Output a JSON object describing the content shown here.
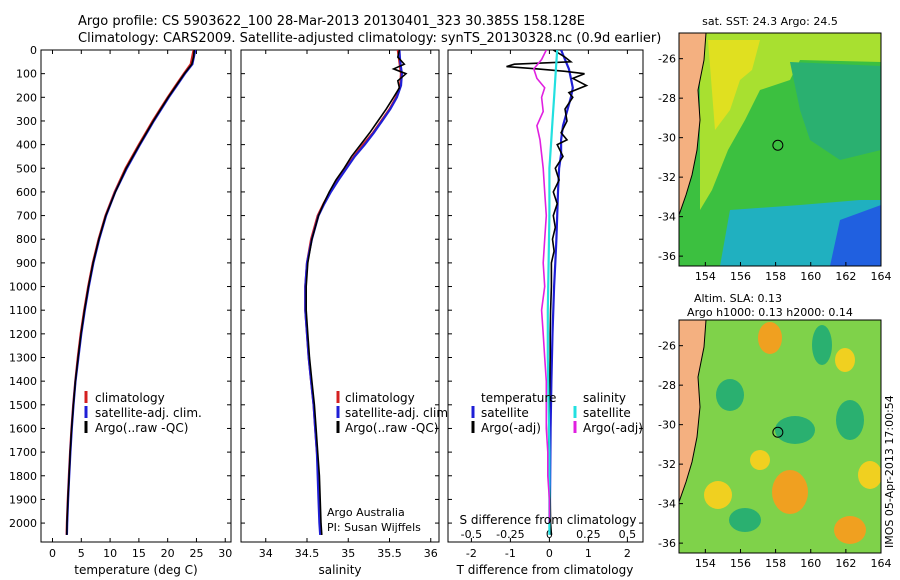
{
  "header": {
    "line1": "Argo profile: CS 5903622_100 28-Mar-2013 20130401_323 30.385S 158.128E",
    "line2": "Climatology: CARS2009. Satellite-adjusted climatology: synTS_20130328.nc (0.9d earlier)"
  },
  "colors": {
    "climatology": "#d42020",
    "satellite": "#1f1fd6",
    "argo": "#000000",
    "sat_salinity": "#22e0e0",
    "argo_salinity": "#e020e0"
  },
  "side_label": "IMOS 05-Apr-2013 17:00:54",
  "chart_data": [
    {
      "type": "line",
      "name": "temperature-profile",
      "xlabel": "temperature (deg C)",
      "xlim": [
        -2,
        31
      ],
      "ylim": [
        2080,
        0
      ],
      "x_ticks": [
        "0",
        "5",
        "10",
        "15",
        "20",
        "25",
        "30"
      ],
      "y_ticks": [
        "0",
        "100",
        "200",
        "300",
        "400",
        "500",
        "600",
        "700",
        "800",
        "900",
        "1000",
        "1100",
        "1200",
        "1300",
        "1400",
        "1500",
        "1600",
        "1700",
        "1800",
        "1900",
        "2000"
      ],
      "legend": [
        "climatology",
        "satellite-adj. clim.",
        "Argo(..raw -QC)"
      ],
      "series": [
        {
          "name": "climatology",
          "color": "#d42020",
          "depth": [
            0,
            60,
            100,
            150,
            200,
            250,
            300,
            350,
            400,
            500,
            600,
            700,
            800,
            900,
            1000,
            1100,
            1200,
            1300,
            1400,
            1500,
            1600,
            1700,
            1800,
            1900,
            2000,
            2050
          ],
          "values": [
            24.5,
            24.0,
            22.8,
            21.4,
            20.0,
            18.7,
            17.4,
            16.2,
            15.0,
            12.7,
            10.8,
            9.2,
            8.0,
            7.0,
            6.2,
            5.5,
            4.9,
            4.4,
            3.95,
            3.6,
            3.3,
            3.05,
            2.85,
            2.65,
            2.5,
            2.45
          ]
        },
        {
          "name": "satellite",
          "color": "#1f1fd6",
          "depth": [
            0,
            60,
            100,
            150,
            200,
            250,
            300,
            350,
            400,
            500,
            600,
            700,
            800,
            900,
            1000,
            1100,
            1200,
            1300,
            1400,
            1500,
            1600,
            1700,
            1800,
            1900,
            2000,
            2050
          ],
          "values": [
            24.8,
            24.3,
            23.0,
            21.6,
            20.2,
            18.9,
            17.6,
            16.4,
            15.2,
            12.9,
            10.9,
            9.3,
            8.1,
            7.1,
            6.3,
            5.6,
            5.0,
            4.5,
            4.0,
            3.65,
            3.35,
            3.1,
            2.9,
            2.7,
            2.55,
            2.5
          ]
        },
        {
          "name": "argo",
          "color": "#000000",
          "depth": [
            0,
            30,
            60,
            100,
            150,
            200,
            250,
            300,
            350,
            400,
            500,
            600,
            700,
            800,
            900,
            1000,
            1100,
            1200,
            1300,
            1400,
            1500,
            1600,
            1700,
            1800,
            1900,
            2000,
            2050
          ],
          "values": [
            24.6,
            24.5,
            24.2,
            22.9,
            21.5,
            20.1,
            18.8,
            17.5,
            16.3,
            15.1,
            12.8,
            10.9,
            9.25,
            8.05,
            7.05,
            6.25,
            5.55,
            4.95,
            4.45,
            3.98,
            3.62,
            3.32,
            3.08,
            2.88,
            2.68,
            2.52,
            2.48
          ]
        }
      ]
    },
    {
      "type": "line",
      "name": "salinity-profile",
      "xlabel": "salinity",
      "xlim": [
        33.7,
        36.1
      ],
      "ylim": [
        2080,
        0
      ],
      "x_ticks": [
        "34",
        "34.5",
        "35",
        "35.5",
        "36"
      ],
      "legend": [
        "climatology",
        "satellite-adj. clim.",
        "Argo(..raw -QC)"
      ],
      "annotation": [
        "Argo Australia",
        "PI: Susan Wijffels"
      ],
      "series": [
        {
          "name": "climatology",
          "color": "#d42020",
          "depth": [
            0,
            50,
            100,
            150,
            200,
            250,
            300,
            350,
            400,
            450,
            500,
            550,
            600,
            650,
            700,
            800,
            900,
            1000,
            1100,
            1200,
            1300,
            1400,
            1500,
            1600,
            1700,
            1800,
            1900,
            2000,
            2050
          ],
          "values": [
            35.6,
            35.62,
            35.64,
            35.63,
            35.58,
            35.5,
            35.4,
            35.3,
            35.18,
            35.07,
            34.97,
            34.87,
            34.78,
            34.7,
            34.63,
            34.55,
            34.5,
            34.48,
            34.48,
            34.5,
            34.52,
            34.55,
            34.58,
            34.6,
            34.62,
            34.64,
            34.65,
            34.66,
            34.67
          ]
        },
        {
          "name": "satellite",
          "color": "#1f1fd6",
          "depth": [
            0,
            50,
            100,
            150,
            200,
            250,
            300,
            350,
            400,
            450,
            500,
            550,
            600,
            650,
            700,
            800,
            900,
            1000,
            1100,
            1200,
            1300,
            1400,
            1500,
            1600,
            1700,
            1800,
            1900,
            2000,
            2050
          ],
          "values": [
            35.62,
            35.63,
            35.65,
            35.64,
            35.59,
            35.51,
            35.41,
            35.31,
            35.2,
            35.08,
            34.98,
            34.88,
            34.79,
            34.71,
            34.64,
            34.56,
            34.5,
            34.48,
            34.48,
            34.5,
            34.52,
            34.55,
            34.58,
            34.6,
            34.62,
            34.63,
            34.64,
            34.65,
            34.66
          ]
        },
        {
          "name": "argo",
          "color": "#000000",
          "depth": [
            0,
            30,
            60,
            80,
            100,
            130,
            160,
            200,
            250,
            300,
            350,
            400,
            450,
            500,
            550,
            600,
            650,
            700,
            800,
            900,
            1000,
            1100,
            1200,
            1300,
            1400,
            1500,
            1600,
            1700,
            1800,
            1900,
            2000,
            2050
          ],
          "values": [
            35.62,
            35.6,
            35.68,
            35.55,
            35.7,
            35.6,
            35.62,
            35.55,
            35.46,
            35.36,
            35.26,
            35.15,
            35.04,
            34.95,
            34.85,
            34.77,
            34.7,
            34.64,
            34.56,
            34.51,
            34.49,
            34.49,
            34.51,
            34.53,
            34.56,
            34.59,
            34.61,
            34.63,
            34.65,
            34.66,
            34.67,
            34.68
          ]
        }
      ]
    },
    {
      "type": "line",
      "name": "difference-profile",
      "xlabel": "T difference from climatology",
      "x2label": "S difference from climatology",
      "xlim": [
        -2.6,
        2.4
      ],
      "ylim": [
        2080,
        0
      ],
      "x_ticks": [
        "-2",
        "-1",
        "0",
        "1",
        "2"
      ],
      "x2_ticks": [
        "-0.5",
        "-0.25",
        "0",
        "0.25",
        "0.5"
      ],
      "legend_t_title": "temperature",
      "legend_s_title": "salinity",
      "legend": [
        "satellite",
        "Argo(-adj)",
        "satellite",
        "Argo(-adj)"
      ],
      "series": [
        {
          "name": "T satellite",
          "color": "#1f1fd6",
          "depth": [
            0,
            40,
            80,
            120,
            160,
            200,
            260,
            320,
            380,
            440,
            500,
            600,
            700,
            800,
            900,
            1000,
            1200,
            1400,
            1600,
            1800,
            2000
          ],
          "values": [
            0.3,
            0.4,
            0.5,
            0.55,
            0.6,
            0.55,
            0.45,
            0.35,
            0.3,
            0.3,
            0.25,
            0.22,
            0.2,
            0.18,
            0.15,
            0.12,
            0.08,
            0.05,
            0.03,
            0.02,
            0.01
          ]
        },
        {
          "name": "T argo",
          "color": "#000000",
          "depth": [
            0,
            30,
            50,
            60,
            70,
            80,
            90,
            100,
            120,
            150,
            180,
            200,
            250,
            300,
            350,
            380,
            400,
            450,
            500,
            550,
            600,
            650,
            700,
            750,
            800,
            850,
            900,
            1000,
            1100,
            1200,
            1300,
            1400,
            1500,
            1600,
            1700,
            1800,
            1900,
            2000,
            2050
          ],
          "values": [
            0.1,
            0.4,
            0.55,
            -0.9,
            -1.1,
            -0.3,
            0.4,
            0.9,
            0.6,
            0.95,
            0.5,
            0.6,
            0.4,
            0.45,
            0.3,
            0.45,
            0.2,
            0.35,
            0.15,
            0.25,
            0.1,
            0.2,
            0.1,
            0.15,
            0.08,
            0.12,
            0.05,
            0.05,
            0.03,
            0.02,
            0.02,
            0.01,
            0.0,
            -0.02,
            -0.01,
            0.0,
            0.02,
            0.03,
            0.05
          ]
        },
        {
          "name": "S satellite",
          "color": "#22e0e0",
          "depth": [
            0,
            100,
            200,
            300,
            400,
            500,
            700,
            900,
            1100,
            1300,
            1500,
            1700,
            1900,
            2050
          ],
          "values": [
            0.05,
            0.04,
            0.03,
            0.02,
            0.01,
            0.0,
            0.0,
            -0.005,
            -0.01,
            -0.01,
            -0.005,
            0.0,
            0.0,
            0.0
          ]
        },
        {
          "name": "S argo",
          "color": "#e020e0",
          "depth": [
            0,
            40,
            80,
            120,
            160,
            200,
            260,
            320,
            380,
            440,
            500,
            600,
            700,
            800,
            900,
            1000,
            1100,
            1200,
            1300,
            1400,
            1500,
            1600,
            1700,
            1800,
            1900,
            2000
          ],
          "values": [
            -0.02,
            -0.05,
            -0.1,
            -0.08,
            -0.03,
            -0.05,
            -0.04,
            -0.08,
            -0.06,
            -0.05,
            -0.04,
            -0.03,
            -0.02,
            -0.03,
            -0.04,
            -0.03,
            -0.05,
            -0.04,
            -0.03,
            -0.02,
            -0.02,
            -0.02,
            -0.01,
            -0.01,
            0.0,
            0.0
          ]
        }
      ]
    },
    {
      "type": "heatmap",
      "name": "sst-map",
      "title": "sat. SST: 24.3  Argo: 24.5",
      "x_ticks": [
        "154",
        "156",
        "158",
        "160",
        "162",
        "164"
      ],
      "y_ticks": [
        "-26",
        "-28",
        "-30",
        "-32",
        "-34",
        "-36"
      ],
      "lon": [
        152.5,
        164
      ],
      "lat": [
        -36.5,
        -24.7
      ],
      "argo_position": {
        "lon": 158.128,
        "lat": -30.385
      }
    },
    {
      "type": "heatmap",
      "name": "sla-map",
      "title1": "Altim. SLA: 0.13",
      "title2": "Argo h1000: 0.13 h2000: 0.14",
      "x_ticks": [
        "154",
        "156",
        "158",
        "160",
        "162",
        "164"
      ],
      "y_ticks": [
        "-26",
        "-28",
        "-30",
        "-32",
        "-34",
        "-36"
      ],
      "lon": [
        152.5,
        164
      ],
      "lat": [
        -36.5,
        -24.7
      ],
      "argo_position": {
        "lon": 158.128,
        "lat": -30.385
      }
    }
  ]
}
